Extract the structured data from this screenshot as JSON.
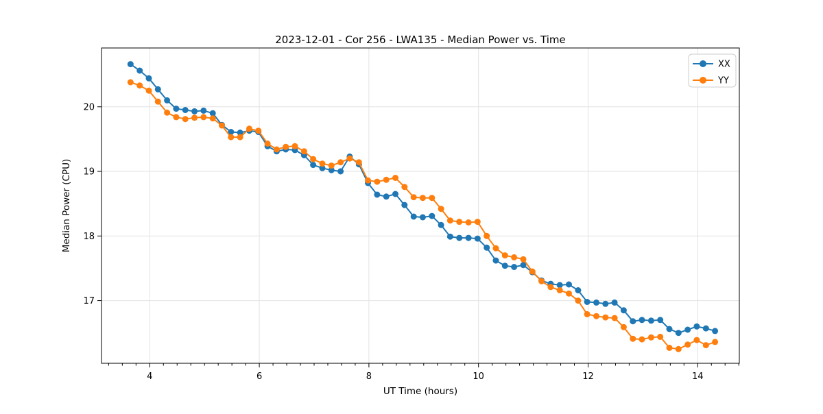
{
  "chart_data": {
    "type": "line",
    "title": "2023-12-01 - Cor 256 - LWA135 - Median Power vs. Time",
    "xlabel": "UT Time (hours)",
    "ylabel": "Median Power (CPU)",
    "xlim": [
      3.12,
      14.76
    ],
    "ylim": [
      16.03,
      20.91
    ],
    "x_ticks": [
      4,
      6,
      8,
      10,
      12,
      14
    ],
    "x_tick_labels": [
      "4",
      "6",
      "8",
      "10",
      "12",
      "14"
    ],
    "x_minor_tick_step": 0.25,
    "y_ticks": [
      17,
      18,
      19,
      20
    ],
    "y_tick_labels": [
      "17",
      "18",
      "19",
      "20"
    ],
    "grid": true,
    "legend_position": "upper right",
    "marker": "circle",
    "x": [
      3.65,
      3.817,
      3.983,
      4.15,
      4.317,
      4.483,
      4.65,
      4.817,
      4.983,
      5.15,
      5.317,
      5.483,
      5.65,
      5.817,
      5.983,
      6.15,
      6.317,
      6.483,
      6.65,
      6.817,
      6.983,
      7.15,
      7.317,
      7.483,
      7.65,
      7.817,
      7.983,
      8.15,
      8.317,
      8.483,
      8.65,
      8.817,
      8.983,
      9.15,
      9.317,
      9.483,
      9.65,
      9.817,
      9.983,
      10.15,
      10.317,
      10.483,
      10.65,
      10.817,
      10.983,
      11.15,
      11.317,
      11.483,
      11.65,
      11.817,
      11.983,
      12.15,
      12.317,
      12.483,
      12.65,
      12.817,
      12.983,
      13.15,
      13.317,
      13.483,
      13.65,
      13.817,
      13.983,
      14.15,
      14.317
    ],
    "series": [
      {
        "name": "XX",
        "color": "#1f77b4",
        "values": [
          20.66,
          20.56,
          20.44,
          20.27,
          20.1,
          19.97,
          19.95,
          19.93,
          19.94,
          19.9,
          19.72,
          19.61,
          19.6,
          19.63,
          19.61,
          19.39,
          19.31,
          19.34,
          19.33,
          19.25,
          19.1,
          19.05,
          19.02,
          19.0,
          19.23,
          19.11,
          18.82,
          18.64,
          18.61,
          18.65,
          18.48,
          18.3,
          18.29,
          18.31,
          18.17,
          17.99,
          17.97,
          17.97,
          17.96,
          17.82,
          17.62,
          17.54,
          17.52,
          17.55,
          17.44,
          17.31,
          17.26,
          17.24,
          17.25,
          17.16,
          16.98,
          16.97,
          16.95,
          16.97,
          16.85,
          16.68,
          16.7,
          16.69,
          16.7,
          16.56,
          16.5,
          16.55,
          16.6,
          16.57,
          16.53
        ]
      },
      {
        "name": "YY",
        "color": "#ff7f0e",
        "values": [
          20.38,
          20.33,
          20.25,
          20.08,
          19.91,
          19.84,
          19.81,
          19.83,
          19.84,
          19.82,
          19.71,
          19.53,
          19.53,
          19.66,
          19.63,
          19.43,
          19.34,
          19.38,
          19.39,
          19.31,
          19.19,
          19.12,
          19.09,
          19.14,
          19.2,
          19.14,
          18.86,
          18.84,
          18.87,
          18.9,
          18.76,
          18.6,
          18.59,
          18.59,
          18.42,
          18.24,
          18.22,
          18.21,
          18.22,
          18.0,
          17.81,
          17.7,
          17.67,
          17.64,
          17.45,
          17.3,
          17.21,
          17.16,
          17.11,
          17.0,
          16.79,
          16.76,
          16.74,
          16.73,
          16.59,
          16.41,
          16.4,
          16.43,
          16.44,
          16.27,
          16.25,
          16.32,
          16.39,
          16.31,
          16.36
        ]
      }
    ]
  }
}
